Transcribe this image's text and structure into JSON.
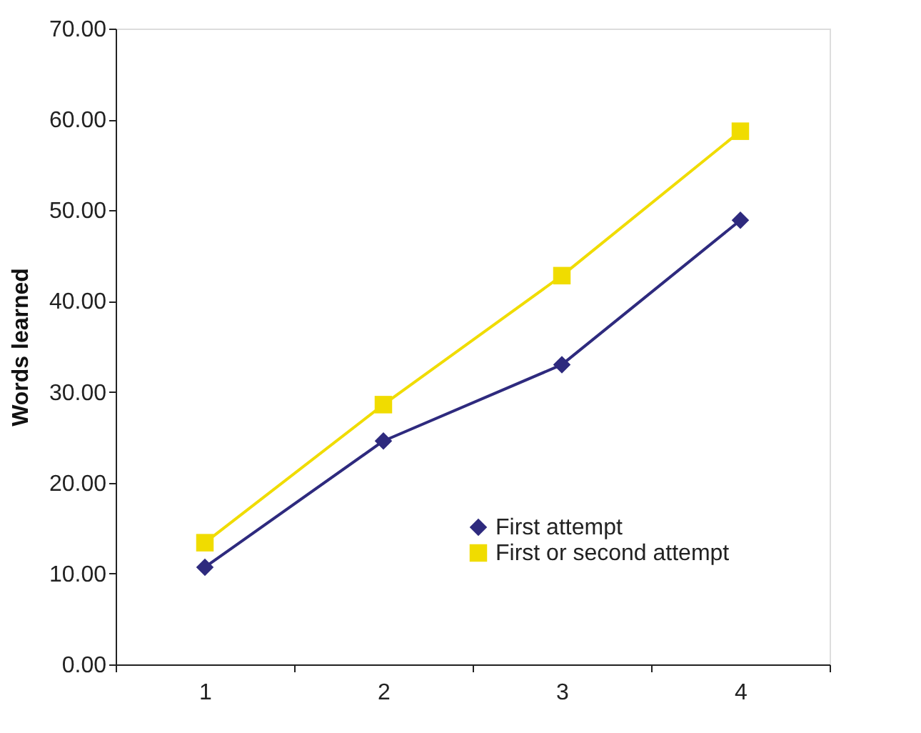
{
  "chart_data": {
    "type": "line",
    "ylabel": "Words learned",
    "categories": [
      "1",
      "2",
      "3",
      "4"
    ],
    "series": [
      {
        "name": "First attempt",
        "color": "#2e2a7e",
        "marker": "diamond",
        "values": [
          10.7,
          24.6,
          33.0,
          48.9
        ]
      },
      {
        "name": "First or second attempt",
        "color": "#f0dc00",
        "marker": "square",
        "values": [
          13.4,
          28.6,
          42.8,
          58.7
        ]
      }
    ],
    "ylim": [
      0,
      70
    ],
    "yticks": [
      {
        "value": 0,
        "label": "0.00"
      },
      {
        "value": 10,
        "label": "10.00"
      },
      {
        "value": 20,
        "label": "20.00"
      },
      {
        "value": 30,
        "label": "30.00"
      },
      {
        "value": 40,
        "label": "40.00"
      },
      {
        "value": 50,
        "label": "50.00"
      },
      {
        "value": 60,
        "label": "60.00"
      },
      {
        "value": 70,
        "label": "70.00"
      }
    ],
    "grid": false,
    "legend": "bottom right",
    "line_style": "solid"
  }
}
